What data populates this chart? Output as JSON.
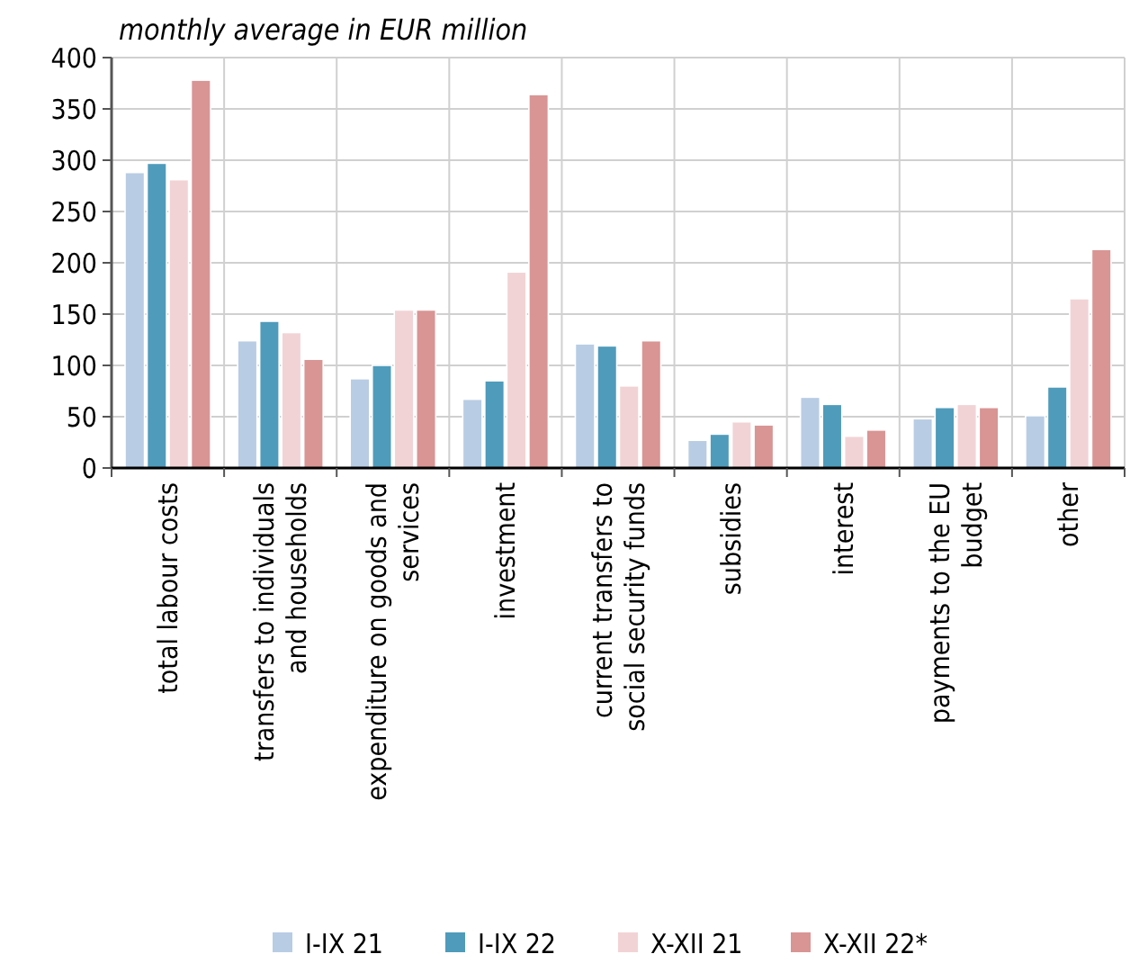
{
  "chart_data": {
    "type": "bar",
    "title": "monthly average in EUR million",
    "categories": [
      "total labour costs",
      "transfers to individuals and households",
      "expenditure on goods and services",
      "investment",
      "current transfers to social security funds",
      "subsidies",
      "interest",
      "payments to the EU budget",
      "other"
    ],
    "series": [
      {
        "name": "I-IX 21",
        "color": "#b8cce4",
        "values": [
          288,
          124,
          87,
          67,
          121,
          27,
          69,
          48,
          51
        ]
      },
      {
        "name": "I-IX 22",
        "color": "#4f9bbb",
        "values": [
          297,
          143,
          100,
          85,
          119,
          33,
          62,
          59,
          79
        ]
      },
      {
        "name": "X-XII 21",
        "color": "#f2d3d5",
        "values": [
          281,
          132,
          154,
          191,
          80,
          45,
          31,
          62,
          165
        ]
      },
      {
        "name": "X-XII 22*",
        "color": "#d99494",
        "values": [
          378,
          106,
          154,
          364,
          124,
          42,
          37,
          59,
          213
        ]
      }
    ],
    "ylim": [
      0,
      400
    ],
    "yticks": [
      0,
      50,
      100,
      150,
      200,
      250,
      300,
      350,
      400
    ],
    "grid": true,
    "legend": "bottom"
  }
}
